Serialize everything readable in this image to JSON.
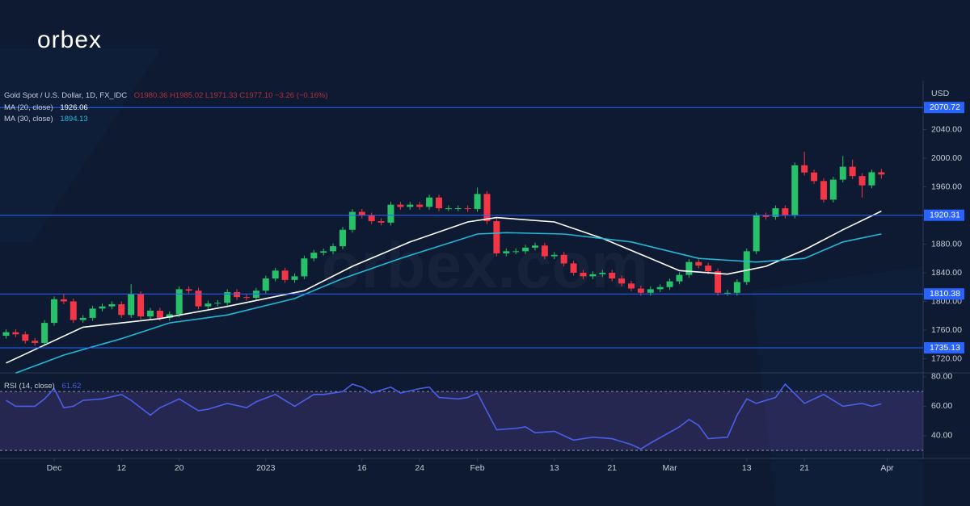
{
  "logo": "orbex",
  "watermark": "orbex.com",
  "chart_data": [
    {
      "type": "candlestick",
      "title": "Gold Spot / U.S. Dollar, 1D, FX_IDC",
      "ohlc_label": "O1980.36 H1985.02 L1971.33 C1977.10 −3.26 (−0.16%)",
      "axis_label": "USD",
      "up_color": "#26c168",
      "down_color": "#f23645",
      "open": [
        1752,
        1757,
        1754,
        1745,
        1742,
        1770,
        1803,
        1800,
        1774,
        1777,
        1790,
        1793,
        1796,
        1781,
        1810,
        1779,
        1787,
        1777,
        1782,
        1817,
        1815,
        1793,
        1797,
        1798,
        1813,
        1806,
        1805,
        1815,
        1832,
        1843,
        1830,
        1835,
        1860,
        1868,
        1870,
        1877,
        1900,
        1925,
        1920,
        1912,
        1910,
        1935,
        1932,
        1935,
        1932,
        1945,
        1930,
        1930,
        1930,
        1929,
        1950,
        1912,
        1867,
        1870,
        1870,
        1875,
        1878,
        1863,
        1865,
        1853,
        1840,
        1835,
        1838,
        1840,
        1832,
        1825,
        1818,
        1812,
        1817,
        1820,
        1828,
        1837,
        1855,
        1850,
        1842,
        1812,
        1812,
        1827,
        1870,
        1920,
        1918,
        1930,
        1920,
        1990,
        1980,
        1968,
        1942,
        1970,
        1988,
        1975,
        1962,
        1980.36
      ],
      "high": [
        1761,
        1761,
        1758,
        1749,
        1774,
        1807,
        1810,
        1804,
        1781,
        1794,
        1797,
        1800,
        1800,
        1824,
        1814,
        1791,
        1791,
        1786,
        1821,
        1821,
        1819,
        1801,
        1802,
        1817,
        1817,
        1810,
        1819,
        1836,
        1847,
        1847,
        1839,
        1864,
        1872,
        1874,
        1881,
        1904,
        1929,
        1929,
        1924,
        1916,
        1939,
        1939,
        1939,
        1939,
        1949,
        1949,
        1934,
        1934,
        1934,
        1959,
        1954,
        1916,
        1874,
        1874,
        1879,
        1882,
        1882,
        1869,
        1869,
        1857,
        1844,
        1842,
        1844,
        1844,
        1836,
        1829,
        1822,
        1821,
        1824,
        1832,
        1841,
        1859,
        1859,
        1854,
        1846,
        1816,
        1831,
        1874,
        1924,
        1924,
        1934,
        1934,
        1994,
        2009,
        1984,
        1972,
        1974,
        2003,
        1998,
        1979,
        1984,
        1985.02
      ],
      "low": [
        1748,
        1750,
        1741,
        1738,
        1738,
        1766,
        1796,
        1770,
        1770,
        1773,
        1786,
        1789,
        1777,
        1777,
        1775,
        1775,
        1773,
        1773,
        1778,
        1811,
        1789,
        1789,
        1793,
        1794,
        1802,
        1801,
        1801,
        1811,
        1828,
        1826,
        1826,
        1831,
        1856,
        1864,
        1866,
        1873,
        1896,
        1916,
        1908,
        1906,
        1906,
        1928,
        1928,
        1928,
        1928,
        1926,
        1926,
        1926,
        1925,
        1925,
        1908,
        1863,
        1863,
        1866,
        1866,
        1871,
        1859,
        1859,
        1849,
        1836,
        1831,
        1831,
        1834,
        1828,
        1821,
        1814,
        1808,
        1808,
        1813,
        1816,
        1824,
        1833,
        1846,
        1838,
        1808,
        1808,
        1808,
        1823,
        1866,
        1914,
        1914,
        1916,
        1916,
        1976,
        1964,
        1938,
        1938,
        1966,
        1971,
        1945,
        1958,
        1971.33
      ],
      "close": [
        1757,
        1754,
        1745,
        1742,
        1770,
        1803,
        1800,
        1774,
        1777,
        1790,
        1793,
        1796,
        1781,
        1810,
        1779,
        1787,
        1777,
        1782,
        1817,
        1815,
        1793,
        1797,
        1798,
        1813,
        1806,
        1805,
        1815,
        1832,
        1843,
        1830,
        1835,
        1860,
        1868,
        1870,
        1877,
        1900,
        1925,
        1920,
        1912,
        1910,
        1935,
        1932,
        1935,
        1932,
        1945,
        1930,
        1930,
        1930,
        1929,
        1950,
        1912,
        1867,
        1870,
        1870,
        1875,
        1878,
        1863,
        1865,
        1853,
        1840,
        1835,
        1838,
        1840,
        1832,
        1825,
        1818,
        1812,
        1817,
        1820,
        1828,
        1837,
        1855,
        1850,
        1842,
        1812,
        1812,
        1827,
        1870,
        1920,
        1918,
        1930,
        1920,
        1990,
        1980,
        1968,
        1942,
        1970,
        1988,
        1975,
        1962,
        1980.36,
        1977.1
      ],
      "series": [
        {
          "name": "MA (20, close)",
          "color": "#ffffff",
          "x": [
            0,
            8,
            16,
            23,
            31,
            36,
            42,
            48,
            51,
            57,
            62,
            67,
            70,
            75,
            79,
            83,
            87,
            91
          ],
          "values": [
            1714,
            1764,
            1776,
            1793,
            1815,
            1849,
            1883,
            1911,
            1917,
            1911,
            1888,
            1860,
            1843,
            1838,
            1849,
            1872,
            1900,
            1926.06
          ]
        },
        {
          "name": "MA (30, close)",
          "color": "#22b8d9",
          "x": [
            1,
            6,
            12,
            17,
            23,
            30,
            35,
            41,
            49,
            52,
            58,
            65,
            72,
            78,
            83,
            87,
            91
          ],
          "values": [
            1700,
            1725,
            1748,
            1770,
            1781,
            1804,
            1832,
            1860,
            1894,
            1896,
            1894,
            1883,
            1860,
            1855,
            1860,
            1883,
            1894.13
          ]
        }
      ],
      "levels": [
        2070.72,
        1920.31,
        1810.38,
        1735.13
      ],
      "level_color": "#2962ff",
      "xlim": [
        -0.63,
        95.34
      ],
      "xticks": [
        {
          "value": 5,
          "label": "Dec"
        },
        {
          "value": 12,
          "label": "12"
        },
        {
          "value": 18,
          "label": "20"
        },
        {
          "value": 27,
          "label": "2023"
        },
        {
          "value": 37,
          "label": "16"
        },
        {
          "value": 43,
          "label": "24"
        },
        {
          "value": 49,
          "label": "Feb"
        },
        {
          "value": 57,
          "label": "13"
        },
        {
          "value": 63,
          "label": "21"
        },
        {
          "value": 69,
          "label": "Mar"
        },
        {
          "value": 77,
          "label": "13"
        },
        {
          "value": 83,
          "label": "21"
        },
        {
          "value": 91.6,
          "label": "Apr"
        }
      ],
      "ylim": [
        1702.5,
        2102.5
      ],
      "yticks": [
        {
          "value": 1720,
          "label": "1720.00"
        },
        {
          "value": 1760,
          "label": "1760.00"
        },
        {
          "value": 1800,
          "label": "1800.00"
        },
        {
          "value": 1840,
          "label": "1840.00"
        },
        {
          "value": 1880,
          "label": "1880.00"
        },
        {
          "value": 1960,
          "label": "1960.00"
        },
        {
          "value": 2000,
          "label": "2000.00"
        },
        {
          "value": 2040,
          "label": "2040.00"
        }
      ]
    },
    {
      "type": "line",
      "title": "RSI (14, close)",
      "series": [
        {
          "name": "RSI",
          "color": "#4a5ee8",
          "x": [
            0,
            1,
            3,
            4,
            5,
            6,
            7,
            8,
            10,
            12,
            13,
            15,
            16,
            17,
            18,
            20,
            21,
            23,
            25,
            26,
            28,
            30,
            32,
            33,
            35,
            36,
            37,
            38,
            40,
            41,
            43,
            44,
            45,
            47,
            48,
            49,
            51,
            53,
            54,
            55,
            57,
            59,
            61,
            63,
            65,
            66,
            67,
            70,
            71,
            72,
            73,
            75,
            76,
            77,
            78,
            80,
            81,
            83,
            85,
            87,
            89,
            90,
            91
          ],
          "values": [
            64,
            60,
            60,
            65,
            72,
            59,
            60,
            64,
            65,
            68,
            64,
            54,
            59,
            62,
            65,
            57,
            58,
            62,
            59,
            63,
            68,
            60,
            68,
            68,
            70,
            75,
            73,
            69,
            73,
            69,
            72,
            73,
            66,
            65,
            66,
            69,
            44,
            45,
            46,
            42,
            43,
            37,
            39,
            38,
            34,
            31,
            35,
            46,
            51,
            47,
            38,
            39,
            54,
            65,
            62,
            66,
            75,
            62,
            68,
            60,
            62,
            60,
            61.62
          ]
        }
      ],
      "bands": [
        30,
        70
      ],
      "band_color": "#7e57c2",
      "ylim": [
        24.6,
        82.7
      ],
      "yticks": [
        {
          "value": 40,
          "label": "40.00"
        },
        {
          "value": 60,
          "label": "60.00"
        },
        {
          "value": 80,
          "label": "80.00"
        }
      ]
    }
  ]
}
